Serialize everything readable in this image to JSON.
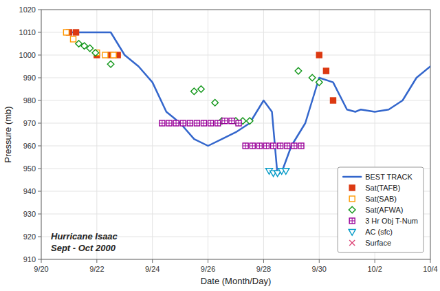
{
  "chart_data": {
    "type": "line",
    "xlabel": "Date (Month/Day)",
    "ylabel": "Pressure (mb)",
    "annotations": [
      "Hurricane Isaac",
      "Sept - Oct 2000"
    ],
    "xlim": [
      0.0,
      14.0
    ],
    "xticks": [
      {
        "value": 0,
        "label": "9/20"
      },
      {
        "value": 2,
        "label": "9/22"
      },
      {
        "value": 4,
        "label": "9/24"
      },
      {
        "value": 6,
        "label": "9/26"
      },
      {
        "value": 8,
        "label": "9/28"
      },
      {
        "value": 10,
        "label": "9/30"
      },
      {
        "value": 12,
        "label": "10/2"
      },
      {
        "value": 14,
        "label": "10/4"
      }
    ],
    "ylim": [
      910,
      1020
    ],
    "yticks": [
      910,
      920,
      930,
      940,
      950,
      960,
      970,
      980,
      990,
      1000,
      1010,
      1020
    ],
    "grid": true,
    "legend": "lower right",
    "series": [
      {
        "name": "BEST TRACK",
        "type": "line",
        "line_style": "solid",
        "x": [
          1.0,
          1.5,
          2.0,
          2.5,
          3.0,
          3.5,
          4.0,
          4.5,
          5.0,
          5.5,
          6.0,
          6.5,
          7.0,
          7.5,
          8.0,
          8.3,
          8.5,
          8.7,
          9.0,
          9.5,
          10.0,
          10.5,
          11.0,
          11.3,
          11.5,
          12.0,
          12.5,
          13.0,
          13.5,
          14.0
        ],
        "values": [
          1010,
          1010,
          1010,
          1010,
          1000,
          995,
          988,
          975,
          970,
          963,
          960,
          963,
          966,
          970,
          980,
          975,
          947,
          950,
          960,
          970,
          990,
          988,
          976,
          975,
          976,
          975,
          976,
          980,
          990,
          995
        ]
      },
      {
        "name": "Sat(TAFB)",
        "type": "scatter",
        "marker": "square",
        "x": [
          1.0,
          1.25,
          2.0,
          2.5,
          2.75,
          10.0,
          10.25,
          10.5
        ],
        "values": [
          1010,
          1010,
          1000,
          1000,
          1000,
          1000,
          993,
          980
        ]
      },
      {
        "name": "Sat(SAB)",
        "type": "scatter",
        "marker": "square-open",
        "x": [
          0.9,
          1.15,
          2.0,
          2.3,
          2.6
        ],
        "values": [
          1010,
          1007,
          1001,
          1000,
          1000
        ]
      },
      {
        "name": "Sat(AFWA)",
        "type": "scatter",
        "marker": "diamond-open",
        "x": [
          1.35,
          1.55,
          1.75,
          1.95,
          2.5,
          5.5,
          5.75,
          6.25,
          6.5,
          7.0,
          7.25,
          7.5,
          9.25,
          9.75,
          10.0
        ],
        "values": [
          1005,
          1004,
          1003,
          1001,
          996,
          984,
          985,
          979,
          971,
          971,
          971,
          971,
          993,
          990,
          988
        ]
      },
      {
        "name": "3 Hr Obj T-Num",
        "type": "scatter",
        "marker": "square-plus",
        "x": [
          4.35,
          4.6,
          4.85,
          5.1,
          5.35,
          5.6,
          5.85,
          6.1,
          6.35,
          6.6,
          6.85,
          7.1,
          7.35,
          7.6,
          7.85,
          8.1,
          8.35,
          8.6,
          8.85,
          9.1,
          9.35
        ],
        "values": [
          970,
          970,
          970,
          970,
          970,
          970,
          970,
          970,
          970,
          971,
          971,
          970,
          960,
          960,
          960,
          960,
          960,
          960,
          960,
          960,
          960
        ]
      },
      {
        "name": "AC (sfc)",
        "type": "scatter",
        "marker": "triangle-down-open",
        "x": [
          8.2,
          8.35,
          8.5,
          8.65,
          8.8
        ],
        "values": [
          949,
          948,
          948,
          949,
          949
        ]
      },
      {
        "name": "Surface",
        "type": "scatter",
        "marker": "x",
        "x": [],
        "values": []
      }
    ]
  }
}
